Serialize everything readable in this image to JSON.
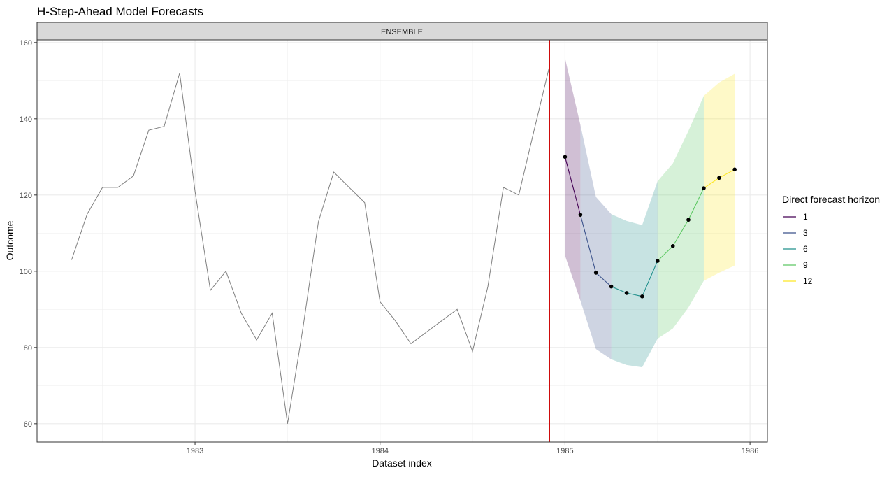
{
  "chart_data": {
    "type": "line",
    "title": "H-Step-Ahead Model Forecasts",
    "facet_label": "ENSEMBLE",
    "xlabel": "Dataset index",
    "ylabel": "Outcome",
    "xlim": [
      1982.146,
      1986.094
    ],
    "ylim": [
      55.2,
      160.7
    ],
    "x_ticks": [
      1983,
      1984,
      1985,
      1986
    ],
    "x_tick_labels": [
      "1983",
      "1984",
      "1985",
      "1986"
    ],
    "y_ticks": [
      60,
      80,
      100,
      120,
      140,
      160
    ],
    "y_tick_labels": [
      "60",
      "80",
      "100",
      "120",
      "140",
      "160"
    ],
    "grid": true,
    "forecast_origin": 1984.917,
    "forecast_origin_color": "#cc0000",
    "history": {
      "color": "#7f7f7f",
      "x": [
        1982.333,
        1982.417,
        1982.5,
        1982.583,
        1982.667,
        1982.75,
        1982.833,
        1982.917,
        1983.0,
        1983.083,
        1983.167,
        1983.25,
        1983.333,
        1983.417,
        1983.5,
        1983.583,
        1983.667,
        1983.75,
        1983.833,
        1983.917,
        1984.0,
        1984.083,
        1984.167,
        1984.25,
        1984.333,
        1984.417,
        1984.5,
        1984.583,
        1984.667,
        1984.75,
        1984.833,
        1984.917
      ],
      "y": [
        103,
        115,
        122,
        122,
        125,
        137,
        138,
        152,
        121,
        95,
        100,
        89,
        82,
        89,
        60,
        85,
        113,
        126,
        122,
        118,
        92,
        87,
        81,
        84,
        87,
        90,
        79,
        96,
        122,
        120,
        137,
        154
      ]
    },
    "forecast": {
      "x": [
        1985.0,
        1985.083,
        1985.167,
        1985.25,
        1985.333,
        1985.417,
        1985.5,
        1985.583,
        1985.667,
        1985.75,
        1985.833,
        1985.917
      ],
      "y": [
        130,
        114.8,
        99.6,
        96.0,
        94.3,
        93.4,
        102.7,
        106.6,
        113.5,
        121.8,
        124.5,
        126.7
      ],
      "lower": [
        104.1,
        92.3,
        79.6,
        76.9,
        75.4,
        74.8,
        82.3,
        85.0,
        90.5,
        97.5,
        99.6,
        101.5
      ],
      "upper": [
        155.9,
        138.4,
        119.5,
        115.0,
        113.2,
        112.1,
        123.6,
        128.3,
        136.8,
        146.0,
        149.5,
        151.8
      ],
      "horizon": [
        "1",
        "3",
        "3",
        "6",
        "6",
        "6",
        "9",
        "9",
        "9",
        "12",
        "12",
        "12"
      ]
    },
    "legend": {
      "title": "Direct forecast horizon",
      "position": "right",
      "entries": [
        {
          "label": "1",
          "color": "#440154"
        },
        {
          "label": "3",
          "color": "#3B528B"
        },
        {
          "label": "6",
          "color": "#21908C"
        },
        {
          "label": "9",
          "color": "#5DC863"
        },
        {
          "label": "12",
          "color": "#FDE725"
        }
      ]
    }
  }
}
